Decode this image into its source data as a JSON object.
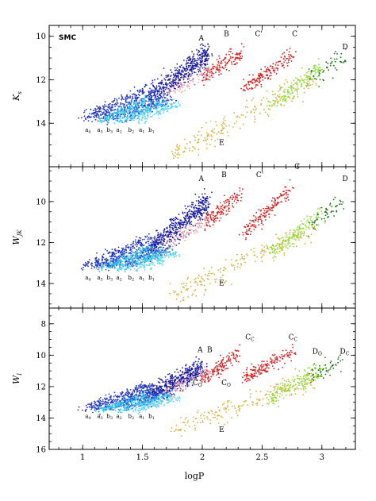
{
  "chart_data": [
    {
      "type": "scatter",
      "panel": "top",
      "tag": "SMC",
      "ylabel": "K_s",
      "ylabel_parts": {
        "main": "K",
        "sub": "s"
      },
      "xlim": [
        0.72,
        3.28
      ],
      "ylim": [
        16.0,
        9.5
      ],
      "yticks": [
        10,
        12,
        14
      ],
      "y_inverted": true,
      "sequences": [
        {
          "id": "A",
          "label": "A",
          "color": "#1a1aa0",
          "x": [
            1.55,
            2.05
          ],
          "y": [
            12.9,
            10.8
          ],
          "scatter": 0.55,
          "n": 500
        },
        {
          "id": "B",
          "label": "B",
          "color": "#d42020",
          "x": [
            2.0,
            2.32
          ],
          "y": [
            11.9,
            10.8
          ],
          "scatter": 0.35,
          "n": 140
        },
        {
          "id": "C'",
          "label": "C'",
          "color": "#d42020",
          "x": [
            2.35,
            2.75
          ],
          "y": [
            12.4,
            10.9
          ],
          "scatter": 0.35,
          "n": 160
        },
        {
          "id": "C",
          "label": "C",
          "color": "#8fe03a",
          "x": [
            2.55,
            3.0
          ],
          "y": [
            13.2,
            11.4
          ],
          "scatter": 0.35,
          "n": 170
        },
        {
          "id": "D",
          "label": "D",
          "color": "#1a6e1a",
          "x": [
            2.9,
            3.18
          ],
          "y": [
            12.0,
            11.0
          ],
          "scatter": 0.45,
          "n": 50
        },
        {
          "id": "E",
          "label": "E",
          "color": "#d4b040",
          "x": [
            1.75,
            2.95
          ],
          "y": [
            15.4,
            11.9
          ],
          "scatter": 0.55,
          "n": 200
        },
        {
          "id": "pink",
          "label": "",
          "color": "#e8a0b0",
          "x": [
            1.7,
            2.05
          ],
          "y": [
            12.6,
            11.6
          ],
          "scatter": 0.35,
          "n": 90
        },
        {
          "id": "a4",
          "label": "a4",
          "color": "#2030b8",
          "x": [
            1.0,
            1.55
          ],
          "y": [
            13.8,
            12.4
          ],
          "scatter": 0.25,
          "n": 160
        },
        {
          "id": "a3",
          "label": "a3",
          "color": "#2040c8",
          "x": [
            1.1,
            1.6
          ],
          "y": [
            13.8,
            12.6
          ],
          "scatter": 0.25,
          "n": 150
        },
        {
          "id": "a2",
          "label": "a2",
          "color": "#2050d0",
          "x": [
            1.2,
            1.65
          ],
          "y": [
            13.8,
            12.9
          ],
          "scatter": 0.2,
          "n": 150
        },
        {
          "id": "a1",
          "label": "a1",
          "color": "#3060d0",
          "x": [
            1.35,
            1.75
          ],
          "y": [
            13.8,
            12.9
          ],
          "scatter": 0.2,
          "n": 120
        },
        {
          "id": "b3",
          "label": "b3",
          "color": "#30c8e8",
          "x": [
            1.15,
            1.55
          ],
          "y": [
            13.9,
            12.9
          ],
          "scatter": 0.2,
          "n": 130
        },
        {
          "id": "b2",
          "label": "b2",
          "color": "#40d0f0",
          "x": [
            1.3,
            1.7
          ],
          "y": [
            13.9,
            13.0
          ],
          "scatter": 0.2,
          "n": 130
        },
        {
          "id": "b1",
          "label": "b1",
          "color": "#60d8f0",
          "x": [
            1.45,
            1.8
          ],
          "y": [
            13.9,
            13.1
          ],
          "scatter": 0.2,
          "n": 110
        }
      ],
      "annotations": [
        {
          "text": "A",
          "x": 1.97,
          "y": 10.2
        },
        {
          "text": "B",
          "x": 2.18,
          "y": 10.0
        },
        {
          "text": "C'",
          "x": 2.44,
          "y": 10.0
        },
        {
          "text": "C",
          "x": 2.75,
          "y": 10.0
        },
        {
          "text": "D",
          "x": 3.17,
          "y": 10.6
        },
        {
          "text": "E",
          "x": 2.14,
          "y": 15.0
        },
        {
          "text": "a4",
          "x": 1.02,
          "y": 14.4,
          "small": true
        },
        {
          "text": "a3",
          "x": 1.12,
          "y": 14.4,
          "small": true
        },
        {
          "text": "b3",
          "x": 1.2,
          "y": 14.4,
          "small": true
        },
        {
          "text": "a2",
          "x": 1.28,
          "y": 14.4,
          "small": true
        },
        {
          "text": "b2",
          "x": 1.38,
          "y": 14.4,
          "small": true
        },
        {
          "text": "a1",
          "x": 1.47,
          "y": 14.4,
          "small": true
        },
        {
          "text": "b1",
          "x": 1.55,
          "y": 14.4,
          "small": true
        }
      ]
    },
    {
      "type": "scatter",
      "panel": "middle",
      "ylabel": "W_JK",
      "ylabel_parts": {
        "main": "W",
        "sub": "JK"
      },
      "xlim": [
        0.72,
        3.28
      ],
      "ylim": [
        15.2,
        8.3
      ],
      "yticks": [
        10,
        12,
        14
      ],
      "y_inverted": true,
      "sequences": [
        {
          "id": "A",
          "label": "A",
          "color": "#1a1aa0",
          "x": [
            1.55,
            2.05
          ],
          "y": [
            12.4,
            10.0
          ],
          "scatter": 0.55,
          "n": 500
        },
        {
          "id": "B",
          "label": "B",
          "color": "#d42020",
          "x": [
            2.0,
            2.32
          ],
          "y": [
            11.2,
            9.6
          ],
          "scatter": 0.35,
          "n": 140
        },
        {
          "id": "C'",
          "label": "C'",
          "color": "#d42020",
          "x": [
            2.35,
            2.75
          ],
          "y": [
            11.5,
            9.4
          ],
          "scatter": 0.35,
          "n": 160
        },
        {
          "id": "C",
          "label": "C",
          "color": "#8fe03a",
          "x": [
            2.55,
            3.0
          ],
          "y": [
            12.6,
            10.6
          ],
          "scatter": 0.35,
          "n": 170
        },
        {
          "id": "D",
          "label": "D",
          "color": "#1a6e1a",
          "x": [
            2.9,
            3.18
          ],
          "y": [
            11.2,
            10.0
          ],
          "scatter": 0.45,
          "n": 50
        },
        {
          "id": "E",
          "label": "E",
          "color": "#d4b040",
          "x": [
            1.75,
            2.95
          ],
          "y": [
            14.6,
            11.2
          ],
          "scatter": 0.55,
          "n": 200
        },
        {
          "id": "pink",
          "label": "",
          "color": "#e8a0b0",
          "x": [
            1.7,
            2.05
          ],
          "y": [
            12.0,
            10.9
          ],
          "scatter": 0.35,
          "n": 90
        },
        {
          "id": "a4",
          "label": "a4",
          "color": "#2030b8",
          "x": [
            1.0,
            1.55
          ],
          "y": [
            13.2,
            11.8
          ],
          "scatter": 0.25,
          "n": 160
        },
        {
          "id": "a3",
          "label": "a3",
          "color": "#2040c8",
          "x": [
            1.1,
            1.6
          ],
          "y": [
            13.2,
            12.0
          ],
          "scatter": 0.25,
          "n": 150
        },
        {
          "id": "a2",
          "label": "a2",
          "color": "#2050d0",
          "x": [
            1.2,
            1.65
          ],
          "y": [
            13.2,
            12.3
          ],
          "scatter": 0.2,
          "n": 150
        },
        {
          "id": "a1",
          "label": "a1",
          "color": "#3060d0",
          "x": [
            1.35,
            1.75
          ],
          "y": [
            13.2,
            12.3
          ],
          "scatter": 0.2,
          "n": 120
        },
        {
          "id": "b3",
          "label": "b3",
          "color": "#30c8e8",
          "x": [
            1.15,
            1.55
          ],
          "y": [
            13.3,
            12.3
          ],
          "scatter": 0.2,
          "n": 130
        },
        {
          "id": "b2",
          "label": "b2",
          "color": "#40d0f0",
          "x": [
            1.3,
            1.7
          ],
          "y": [
            13.3,
            12.4
          ],
          "scatter": 0.2,
          "n": 130
        },
        {
          "id": "b1",
          "label": "b1",
          "color": "#60d8f0",
          "x": [
            1.45,
            1.8
          ],
          "y": [
            13.3,
            12.5
          ],
          "scatter": 0.2,
          "n": 110
        }
      ],
      "annotations": [
        {
          "text": "A",
          "x": 1.97,
          "y": 9.0
        },
        {
          "text": "B",
          "x": 2.16,
          "y": 8.8
        },
        {
          "text": "C'",
          "x": 2.45,
          "y": 8.8
        },
        {
          "text": "C",
          "x": 2.77,
          "y": 8.4
        },
        {
          "text": "D",
          "x": 3.17,
          "y": 9.0
        },
        {
          "text": "E",
          "x": 2.14,
          "y": 14.1
        },
        {
          "text": "a4",
          "x": 1.02,
          "y": 13.8,
          "small": true
        },
        {
          "text": "a3",
          "x": 1.12,
          "y": 13.8,
          "small": true
        },
        {
          "text": "b3",
          "x": 1.2,
          "y": 13.8,
          "small": true
        },
        {
          "text": "a2",
          "x": 1.28,
          "y": 13.8,
          "small": true
        },
        {
          "text": "b2",
          "x": 1.38,
          "y": 13.8,
          "small": true
        },
        {
          "text": "a1",
          "x": 1.47,
          "y": 13.8,
          "small": true
        },
        {
          "text": "b1",
          "x": 1.55,
          "y": 13.8,
          "small": true
        }
      ]
    },
    {
      "type": "scatter",
      "panel": "bottom",
      "ylabel": "W_I",
      "ylabel_parts": {
        "main": "W",
        "sub": "I"
      },
      "xlabel": "logP",
      "xlim": [
        0.72,
        3.28
      ],
      "xticks": [
        1,
        1.5,
        2,
        2.5,
        3
      ],
      "xtick_labels": [
        "1",
        "1.5",
        "2",
        "2.5",
        "3"
      ],
      "ylim": [
        16.0,
        7.0
      ],
      "yticks": [
        8,
        10,
        12,
        14,
        16
      ],
      "y_inverted": true,
      "sequences": [
        {
          "id": "A",
          "label": "A",
          "color": "#1a1aa0",
          "x": [
            1.55,
            2.0
          ],
          "y": [
            12.6,
            10.8
          ],
          "scatter": 0.6,
          "n": 500
        },
        {
          "id": "B",
          "label": "B",
          "color": "#d42020",
          "x": [
            2.0,
            2.3
          ],
          "y": [
            11.6,
            9.9
          ],
          "scatter": 0.45,
          "n": 140
        },
        {
          "id": "C_C",
          "label": "C_C",
          "color": "#d42020",
          "x": [
            2.35,
            2.75
          ],
          "y": [
            11.4,
            9.8
          ],
          "scatter": 0.5,
          "n": 160
        },
        {
          "id": "C",
          "label": "",
          "color": "#8fe03a",
          "x": [
            2.55,
            3.0
          ],
          "y": [
            12.8,
            10.9
          ],
          "scatter": 0.5,
          "n": 170
        },
        {
          "id": "D",
          "label": "D",
          "color": "#1a6e1a",
          "x": [
            2.9,
            3.18
          ],
          "y": [
            11.4,
            10.2
          ],
          "scatter": 0.55,
          "n": 50
        },
        {
          "id": "E",
          "label": "E",
          "color": "#d4b040",
          "x": [
            1.75,
            2.95
          ],
          "y": [
            14.8,
            11.5
          ],
          "scatter": 0.65,
          "n": 200
        },
        {
          "id": "pink",
          "label": "",
          "color": "#e8a0b0",
          "x": [
            1.7,
            2.05
          ],
          "y": [
            12.3,
            11.0
          ],
          "scatter": 0.45,
          "n": 90
        },
        {
          "id": "a4",
          "label": "a4",
          "color": "#2030b8",
          "x": [
            1.0,
            1.55
          ],
          "y": [
            13.4,
            11.9
          ],
          "scatter": 0.25,
          "n": 160
        },
        {
          "id": "a3",
          "label": "a3",
          "color": "#2040c8",
          "x": [
            1.1,
            1.6
          ],
          "y": [
            13.4,
            12.1
          ],
          "scatter": 0.25,
          "n": 150
        },
        {
          "id": "a2",
          "label": "a2",
          "color": "#2050d0",
          "x": [
            1.2,
            1.65
          ],
          "y": [
            13.4,
            12.4
          ],
          "scatter": 0.2,
          "n": 150
        },
        {
          "id": "a1",
          "label": "a1",
          "color": "#3060d0",
          "x": [
            1.35,
            1.75
          ],
          "y": [
            13.4,
            12.4
          ],
          "scatter": 0.2,
          "n": 120
        },
        {
          "id": "b3",
          "label": "b3",
          "color": "#30c8e8",
          "x": [
            1.15,
            1.55
          ],
          "y": [
            13.5,
            12.5
          ],
          "scatter": 0.2,
          "n": 130
        },
        {
          "id": "b2",
          "label": "b2",
          "color": "#40d0f0",
          "x": [
            1.3,
            1.7
          ],
          "y": [
            13.5,
            12.6
          ],
          "scatter": 0.2,
          "n": 130
        },
        {
          "id": "b1",
          "label": "b1",
          "color": "#60d8f0",
          "x": [
            1.45,
            1.8
          ],
          "y": [
            13.5,
            12.7
          ],
          "scatter": 0.2,
          "n": 110
        }
      ],
      "annotations": [
        {
          "text": "A",
          "x": 1.96,
          "y": 9.8
        },
        {
          "text": "B",
          "x": 2.04,
          "y": 9.8
        },
        {
          "text": "C",
          "sub": "C",
          "x": 2.36,
          "y": 9.0
        },
        {
          "text": "C",
          "sub": "C",
          "x": 2.72,
          "y": 9.0
        },
        {
          "text": "D",
          "sub": "O",
          "x": 2.92,
          "y": 9.9
        },
        {
          "text": "D",
          "sub": "C",
          "x": 3.15,
          "y": 9.9
        },
        {
          "text": "C",
          "sub": "O",
          "x": 1.92,
          "y": 11.9
        },
        {
          "text": "C",
          "sub": "O",
          "x": 2.16,
          "y": 11.9
        },
        {
          "text": "E",
          "x": 2.14,
          "y": 14.9
        },
        {
          "text": "a4",
          "x": 1.02,
          "y": 14.0,
          "small": true
        },
        {
          "text": "a3",
          "x": 1.12,
          "y": 14.0,
          "small": true
        },
        {
          "text": "b3",
          "x": 1.2,
          "y": 14.0,
          "small": true
        },
        {
          "text": "a2",
          "x": 1.28,
          "y": 14.0,
          "small": true
        },
        {
          "text": "b2",
          "x": 1.38,
          "y": 14.0,
          "small": true
        },
        {
          "text": "a1",
          "x": 1.47,
          "y": 14.0,
          "small": true
        },
        {
          "text": "b1",
          "x": 1.55,
          "y": 14.0,
          "small": true
        }
      ]
    }
  ]
}
